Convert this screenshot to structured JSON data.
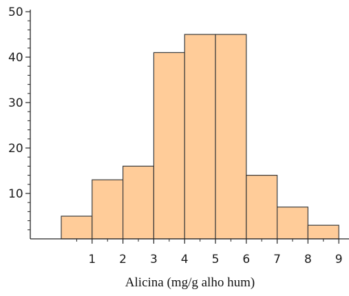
{
  "chart_data": {
    "type": "bar",
    "title": "",
    "xlabel": "Alicina (mg/g alho hum)",
    "ylabel": "",
    "bins": [
      {
        "x0": 0,
        "x1": 1,
        "value": 5
      },
      {
        "x0": 1,
        "x1": 2,
        "value": 13
      },
      {
        "x0": 2,
        "x1": 3,
        "value": 16
      },
      {
        "x0": 3,
        "x1": 4,
        "value": 41
      },
      {
        "x0": 4,
        "x1": 5,
        "value": 45
      },
      {
        "x0": 5,
        "x1": 6,
        "value": 45
      },
      {
        "x0": 6,
        "x1": 7,
        "value": 14
      },
      {
        "x0": 7,
        "x1": 8,
        "value": 7
      },
      {
        "x0": 8,
        "x1": 9,
        "value": 3
      }
    ],
    "xticks": [
      "1",
      "2",
      "3",
      "4",
      "5",
      "6",
      "7",
      "8",
      "9"
    ],
    "yticks": [
      "10",
      "20",
      "30",
      "40",
      "50"
    ],
    "xlim": [
      -1,
      9.5
    ],
    "ylim": [
      0,
      50
    ],
    "grid": false,
    "colors": {
      "bar_fill": "#FFCC99",
      "bar_stroke": "#3a3a3a",
      "axis": "#222222"
    }
  }
}
